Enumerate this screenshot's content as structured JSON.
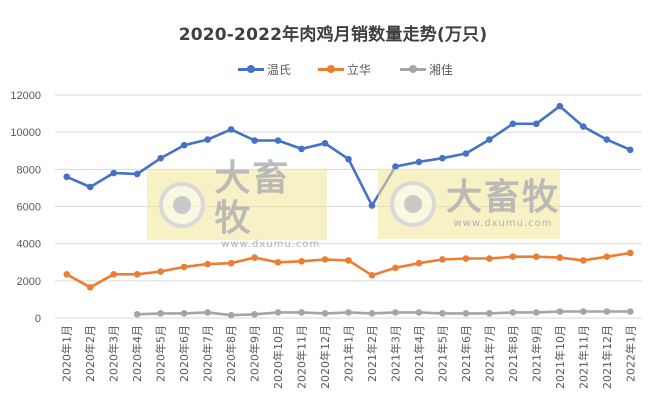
{
  "chart_data": {
    "type": "line",
    "title": "2020-2022年肉鸡月销数量走势(万只)",
    "xlabel": "",
    "ylabel": "",
    "ylim": [
      0,
      12000
    ],
    "yticks": [
      0,
      2000,
      4000,
      6000,
      8000,
      10000,
      12000
    ],
    "grid": true,
    "legend_position": "top",
    "categories": [
      "2020年1月",
      "2020年2月",
      "2020年3月",
      "2020年4月",
      "2020年5月",
      "2020年6月",
      "2020年7月",
      "2020年8月",
      "2020年9月",
      "2020年10月",
      "2020年11月",
      "2020年12月",
      "2021年1月",
      "2021年2月",
      "2021年3月",
      "2021年4月",
      "2021年5月",
      "2021年6月",
      "2021年7月",
      "2021年8月",
      "2021年9月",
      "2021年10月",
      "2021年11月",
      "2021年12月",
      "2022年1月"
    ],
    "series": [
      {
        "name": "温氏",
        "color": "#4472C4",
        "values": [
          7600,
          7050,
          7800,
          7750,
          8600,
          9300,
          9600,
          10150,
          9550,
          9550,
          9100,
          9400,
          8550,
          6050,
          8150,
          8400,
          8600,
          8850,
          9600,
          10450,
          10450,
          11400,
          10300,
          9600,
          9050
        ]
      },
      {
        "name": "立华",
        "color": "#ED7D31",
        "values": [
          2350,
          1650,
          2350,
          2350,
          2500,
          2750,
          2900,
          2950,
          3250,
          3000,
          3050,
          3150,
          3100,
          2300,
          2700,
          2950,
          3150,
          3200,
          3200,
          3300,
          3300,
          3250,
          3100,
          3300,
          3500
        ]
      },
      {
        "name": "湘佳",
        "color": "#A5A5A5",
        "values": [
          null,
          null,
          null,
          200,
          250,
          250,
          300,
          150,
          200,
          300,
          300,
          250,
          300,
          250,
          300,
          300,
          250,
          250,
          250,
          300,
          300,
          350,
          350,
          350,
          350
        ]
      }
    ]
  },
  "legend": {
    "items": [
      {
        "label": "温氏",
        "color": "#4472C4"
      },
      {
        "label": "立华",
        "color": "#ED7D31"
      },
      {
        "label": "湘佳",
        "color": "#A5A5A5"
      }
    ]
  },
  "watermark": {
    "brand": "大畜牧",
    "url": "www.dxumu.com"
  }
}
